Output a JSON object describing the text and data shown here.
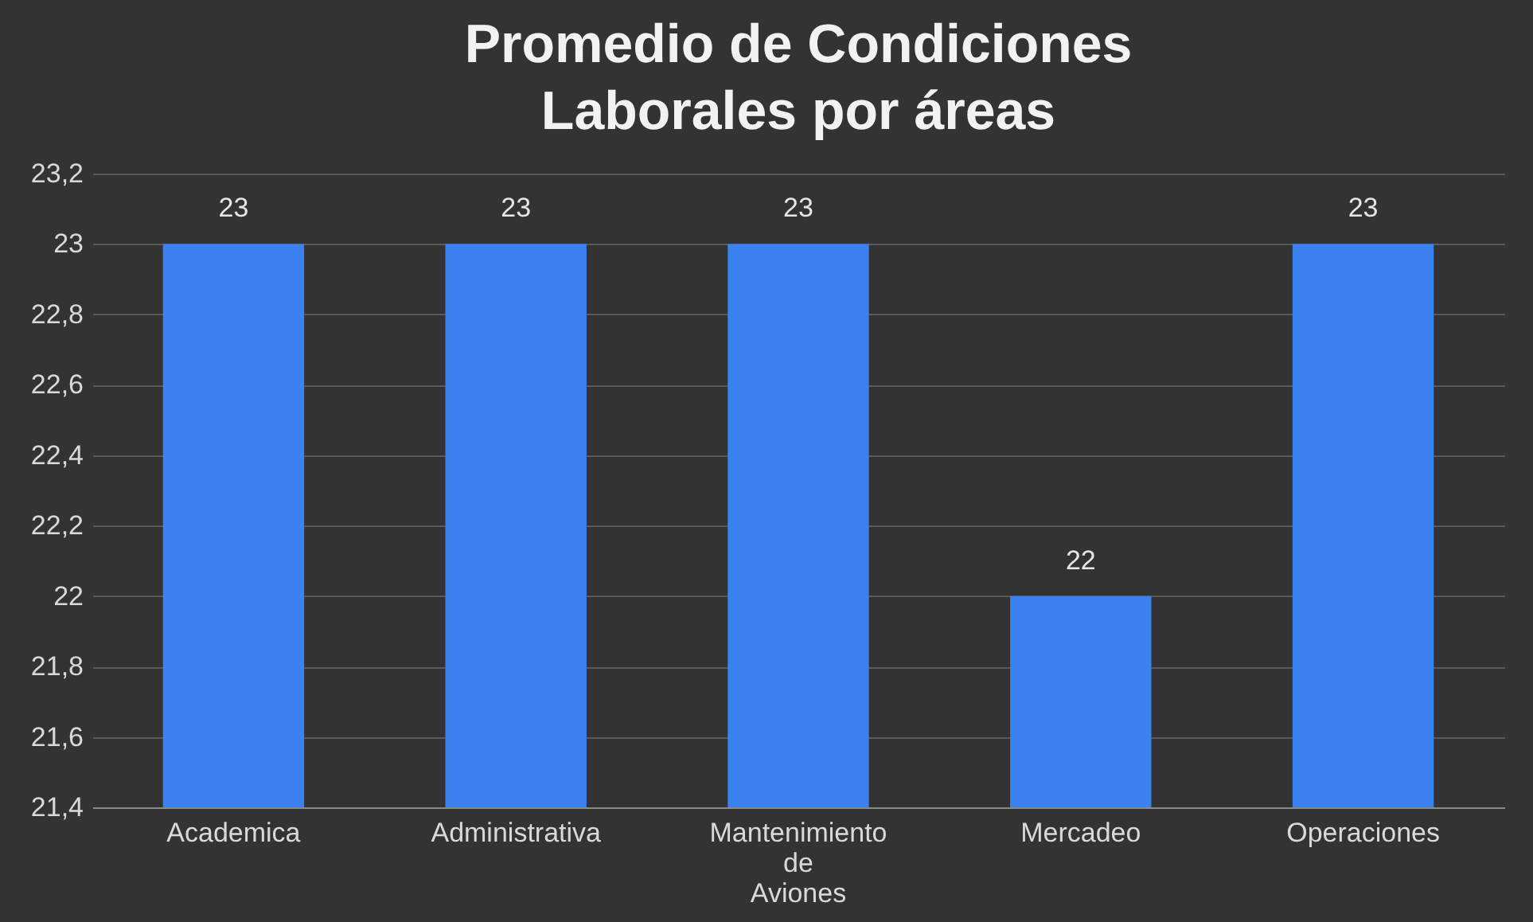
{
  "chart_data": {
    "type": "bar",
    "title": "Promedio de Condiciones Laborales por áreas",
    "categories": [
      "Academica",
      "Administrativa",
      "Mantenimiento de Aviones",
      "Mercadeo",
      "Operaciones"
    ],
    "values": [
      23,
      23,
      23,
      22,
      23
    ],
    "color": "#3b82f0",
    "ylim": [
      21.4,
      23.2
    ],
    "yticks": [
      {
        "value": 21.4,
        "label": "21,4"
      },
      {
        "value": 21.6,
        "label": "21,6"
      },
      {
        "value": 21.8,
        "label": "21,8"
      },
      22,
      {
        "value": 22.2,
        "label": "22,2"
      },
      {
        "value": 22.4,
        "label": "22,4"
      },
      {
        "value": 22.6,
        "label": "22,6"
      },
      {
        "value": 22.8,
        "label": "22,8"
      },
      23,
      {
        "value": 23.2,
        "label": "23,2"
      }
    ],
    "grid": "y",
    "data_labels": true
  }
}
